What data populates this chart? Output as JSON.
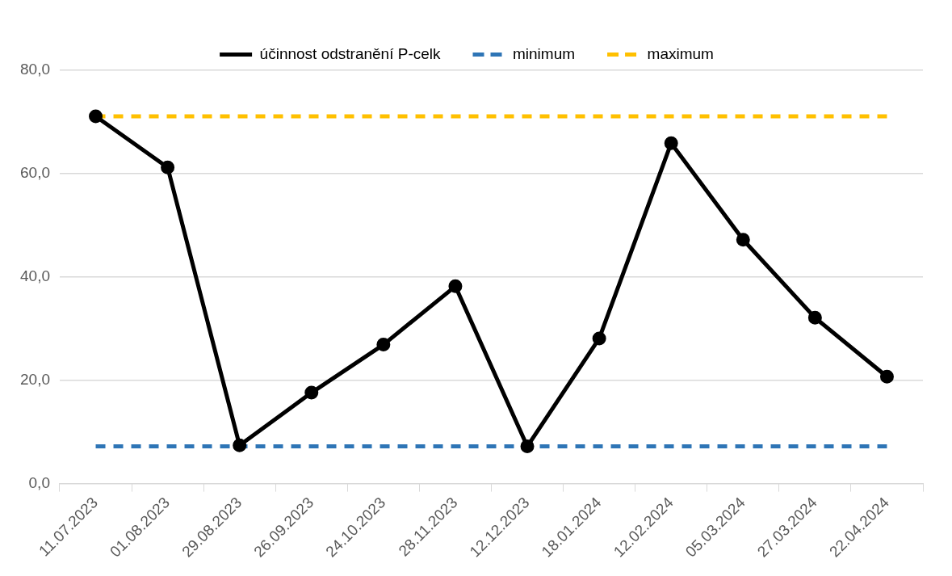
{
  "chart_data": {
    "type": "line",
    "categories": [
      "11.07.2023",
      "01.08.2023",
      "29.08.2023",
      "26.09.2023",
      "24.10.2023",
      "28.11.2023",
      "12.12.2023",
      "18.01.2024",
      "12.02.2024",
      "05.03.2024",
      "27.03.2024",
      "22.04.2024"
    ],
    "series": [
      {
        "name": "účinnost odstranění P-celk",
        "color": "#000000",
        "marker": "circle",
        "line_style": "solid",
        "values": [
          71.1,
          61.2,
          7.4,
          17.6,
          26.9,
          38.2,
          7.2,
          28.1,
          65.9,
          47.2,
          32.1,
          20.7
        ]
      },
      {
        "name": "minimum",
        "color": "#2e75b6",
        "marker": "none",
        "line_style": "dashed",
        "values": [
          7.2,
          7.2,
          7.2,
          7.2,
          7.2,
          7.2,
          7.2,
          7.2,
          7.2,
          7.2,
          7.2,
          7.2
        ]
      },
      {
        "name": "maximum",
        "color": "#ffc000",
        "marker": "none",
        "line_style": "dashed",
        "values": [
          71.1,
          71.1,
          71.1,
          71.1,
          71.1,
          71.1,
          71.1,
          71.1,
          71.1,
          71.1,
          71.1,
          71.1
        ]
      }
    ],
    "ylim": [
      0,
      80
    ],
    "yticks": [
      {
        "value": 0,
        "label": "0,0"
      },
      {
        "value": 20,
        "label": "20,0"
      },
      {
        "value": 40,
        "label": "40,0"
      },
      {
        "value": 60,
        "label": "60,0"
      },
      {
        "value": 80,
        "label": "80,0"
      }
    ],
    "grid": "y",
    "legend": "top"
  }
}
